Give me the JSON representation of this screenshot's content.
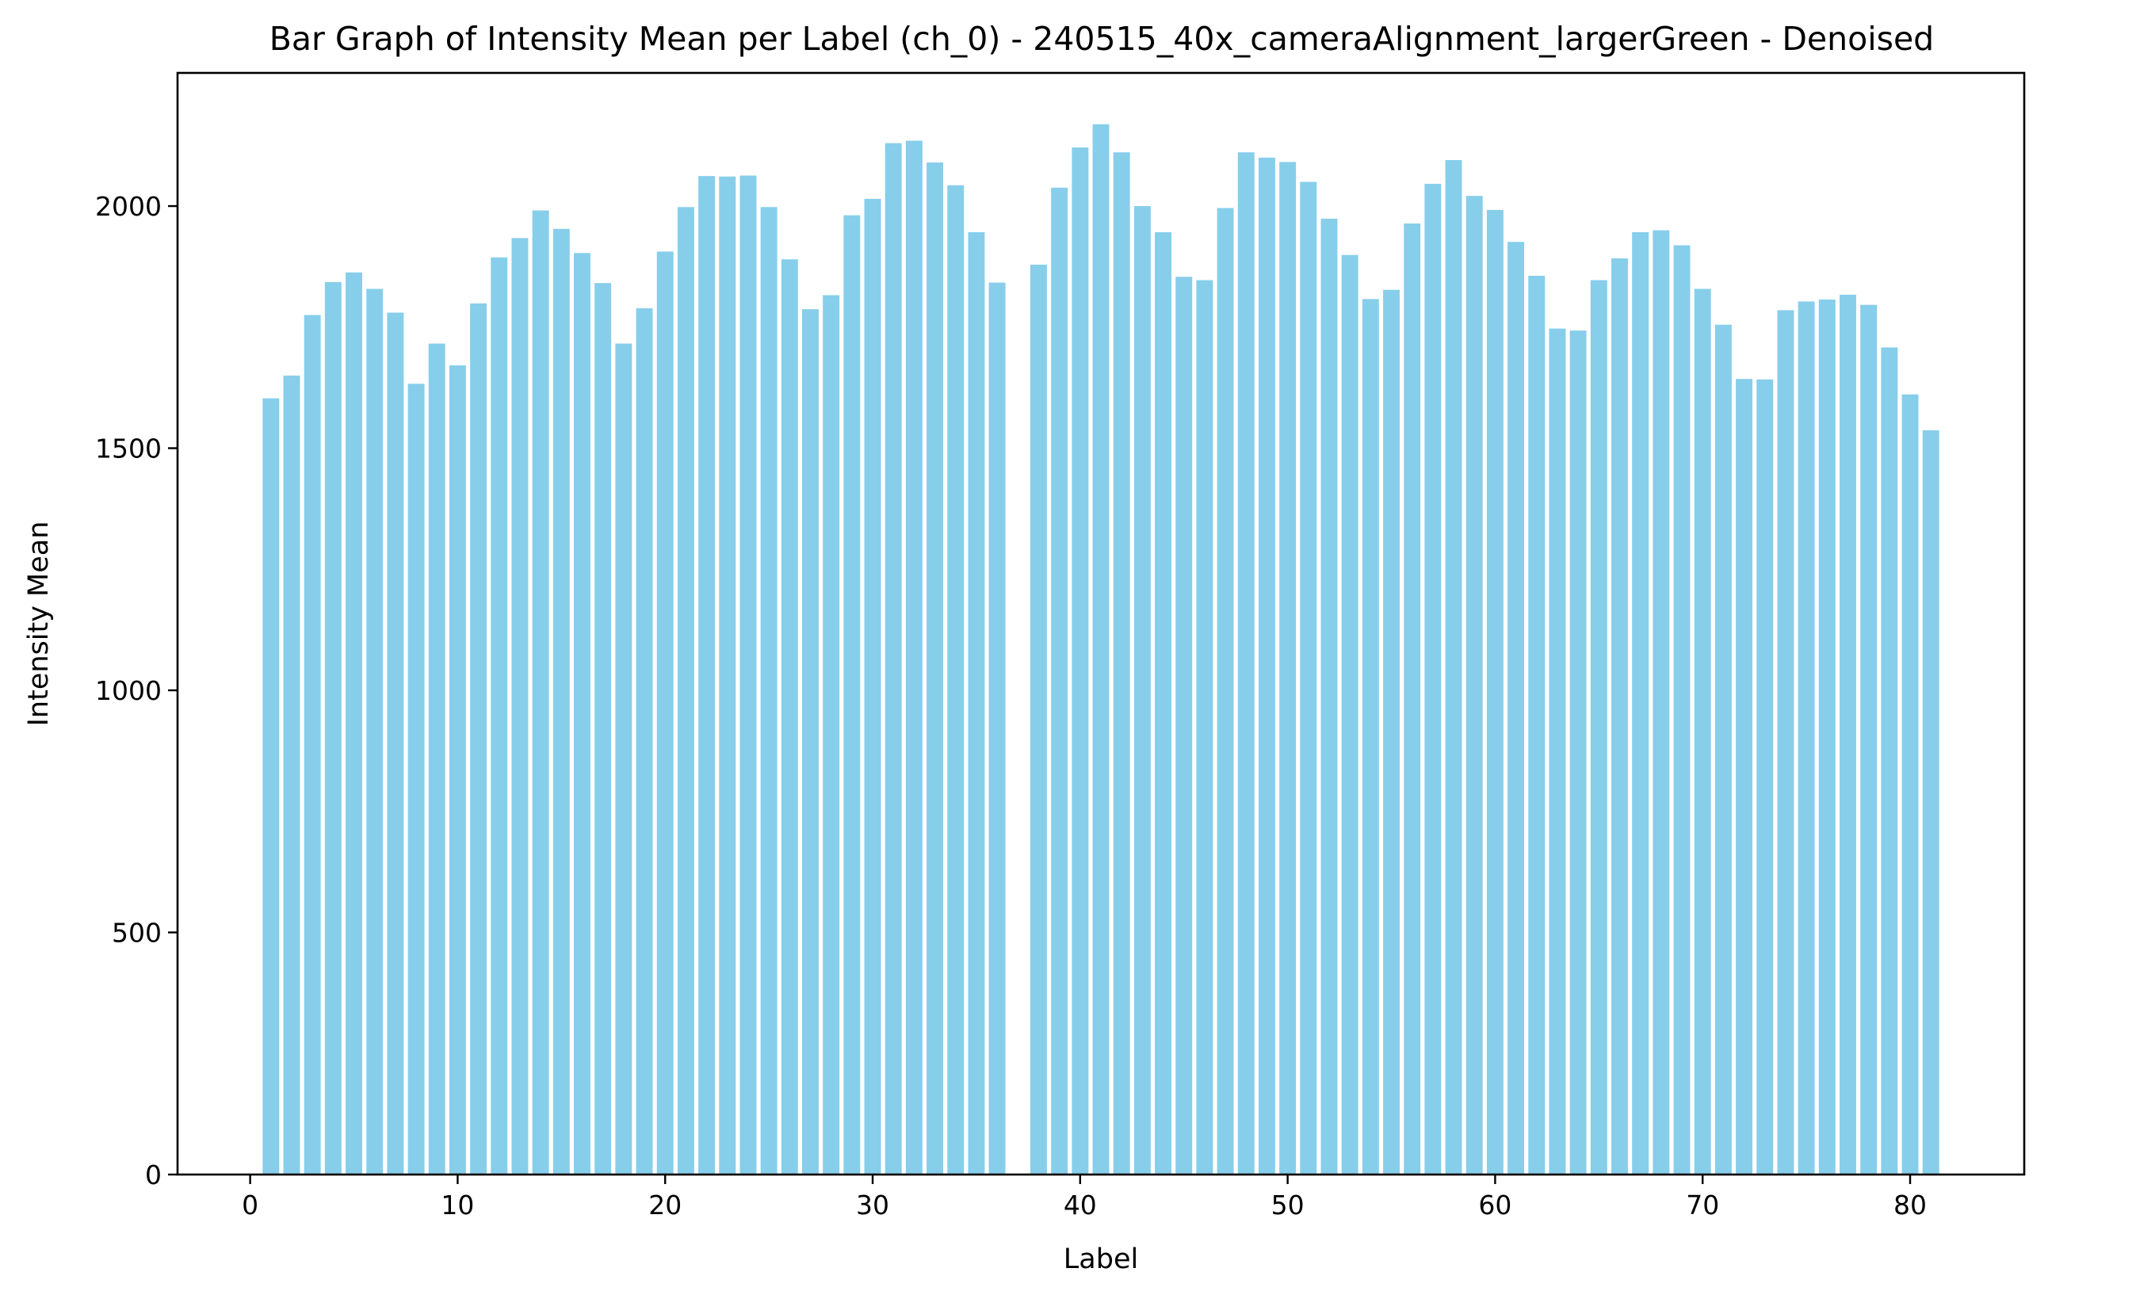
{
  "chart_data": {
    "type": "bar",
    "title": "Bar Graph of Intensity Mean per Label (ch_0) - 240515_40x_cameraAlignment_largerGreen - Denoised",
    "xlabel": "Label",
    "ylabel": "Intensity Mean",
    "xlim": [
      -3.5,
      85.5
    ],
    "ylim": [
      0,
      2275
    ],
    "x_ticks": [
      0,
      10,
      20,
      30,
      40,
      50,
      60,
      70,
      80
    ],
    "x_tick_labels": [
      "0",
      "10",
      "20",
      "30",
      "40",
      "50",
      "60",
      "70",
      "80"
    ],
    "y_ticks": [
      0,
      500,
      1000,
      1500,
      2000
    ],
    "y_tick_labels": [
      "0",
      "500",
      "1000",
      "1500",
      "2000"
    ],
    "grid": false,
    "bar_color": "#87ceeb",
    "bar_width": 0.8,
    "x": [
      1,
      2,
      3,
      4,
      5,
      6,
      7,
      8,
      9,
      10,
      11,
      12,
      13,
      14,
      15,
      16,
      17,
      18,
      19,
      20,
      21,
      22,
      23,
      24,
      25,
      26,
      27,
      28,
      29,
      30,
      31,
      32,
      33,
      34,
      35,
      36,
      38,
      39,
      40,
      41,
      42,
      43,
      44,
      45,
      46,
      47,
      48,
      49,
      50,
      51,
      52,
      53,
      54,
      55,
      56,
      57,
      58,
      59,
      60,
      61,
      62,
      63,
      64,
      65,
      66,
      67,
      68,
      69,
      70,
      71,
      72,
      73,
      74,
      75,
      76,
      77,
      78,
      79,
      80,
      81
    ],
    "values": [
      1603,
      1650,
      1775,
      1843,
      1863,
      1829,
      1780,
      1633,
      1716,
      1671,
      1799,
      1894,
      1934,
      1991,
      1953,
      1903,
      1841,
      1716,
      1789,
      1906,
      1998,
      2062,
      2061,
      2063,
      1998,
      1890,
      1787,
      1816,
      1981,
      2015,
      2130,
      2135,
      2090,
      2043,
      1946,
      1842,
      1879,
      2038,
      2121,
      2169,
      2111,
      2000,
      1946,
      1854,
      1847,
      1996,
      2111,
      2100,
      2091,
      2050,
      1974,
      1899,
      1808,
      1827,
      1964,
      2046,
      2095,
      2021,
      1992,
      1926,
      1856,
      1747,
      1743,
      1847,
      1892,
      1946,
      1950,
      1919,
      1829,
      1755,
      1643,
      1642,
      1785,
      1803,
      1807,
      1817,
      1796,
      1708,
      1611,
      1537
    ]
  }
}
